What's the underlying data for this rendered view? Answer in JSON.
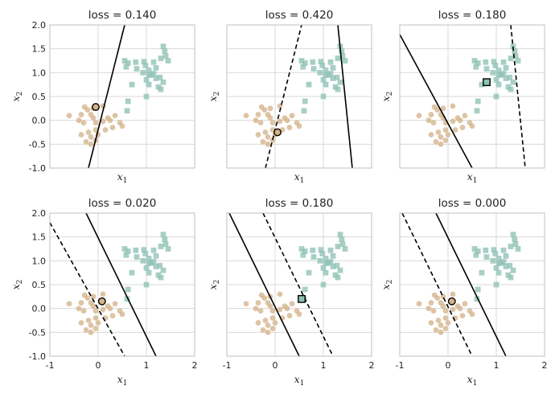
{
  "figure": {
    "xlim": [
      -1,
      2
    ],
    "ylim": [
      -1,
      2
    ],
    "xticks": [
      -1,
      0,
      1,
      2
    ],
    "yticks": [
      -1.0,
      -0.5,
      0.0,
      0.5,
      1.0,
      1.5,
      2.0
    ],
    "xlabel": "x1",
    "ylabel": "x2",
    "xlabel_parts": {
      "base": "x",
      "sub": "1"
    },
    "ylabel_parts": {
      "base": "x",
      "sub": "2"
    },
    "grid": true,
    "colors": {
      "class_square": "#8fc1b5",
      "class_circle": "#d4b48a",
      "line": "#000000",
      "highlight_edge": "#000000",
      "grid": "#d9d9d9",
      "spine": "#bfbfbf"
    },
    "points": {
      "squares": [
        [
          0.55,
          1.25
        ],
        [
          0.62,
          1.2
        ],
        [
          0.58,
          1.12
        ],
        [
          0.95,
          1.23
        ],
        [
          0.98,
          1.15
        ],
        [
          0.78,
          1.22
        ],
        [
          0.8,
          1.08
        ],
        [
          1.05,
          1.05
        ],
        [
          1.15,
          1.22
        ],
        [
          1.2,
          1.1
        ],
        [
          1.3,
          1.3
        ],
        [
          1.35,
          1.55
        ],
        [
          1.38,
          1.45
        ],
        [
          1.4,
          1.35
        ],
        [
          1.45,
          1.25
        ],
        [
          1.05,
          0.95
        ],
        [
          1.1,
          0.95
        ],
        [
          1.15,
          0.98
        ],
        [
          1.2,
          0.88
        ],
        [
          1.0,
          0.85
        ],
        [
          1.05,
          0.75
        ],
        [
          1.25,
          0.7
        ],
        [
          1.3,
          0.65
        ],
        [
          1.35,
          0.8
        ],
        [
          0.7,
          0.75
        ],
        [
          1.0,
          0.5
        ],
        [
          0.62,
          0.4
        ],
        [
          0.6,
          0.2
        ],
        [
          1.28,
          0.9
        ],
        [
          0.93,
          1.0
        ]
      ],
      "circles": [
        [
          -0.28,
          0.28
        ],
        [
          -0.22,
          0.22
        ],
        [
          -0.35,
          0.12
        ],
        [
          -0.6,
          0.1
        ],
        [
          -0.4,
          0.0
        ],
        [
          -0.3,
          -0.05
        ],
        [
          -0.15,
          0.12
        ],
        [
          -0.1,
          0.05
        ],
        [
          -0.05,
          -0.05
        ],
        [
          0.1,
          -0.02
        ],
        [
          0.2,
          0.05
        ],
        [
          0.25,
          0.0
        ],
        [
          0.35,
          0.1
        ],
        [
          0.45,
          -0.05
        ],
        [
          0.5,
          -0.12
        ],
        [
          0.3,
          -0.15
        ],
        [
          0.15,
          -0.2
        ],
        [
          -0.05,
          -0.2
        ],
        [
          -0.2,
          -0.25
        ],
        [
          -0.35,
          -0.3
        ],
        [
          -0.15,
          -0.35
        ],
        [
          -0.05,
          -0.42
        ],
        [
          -0.25,
          -0.45
        ],
        [
          -0.15,
          -0.5
        ],
        [
          0.0,
          -0.3
        ],
        [
          -0.1,
          0.25
        ],
        [
          0.1,
          0.3
        ]
      ]
    }
  },
  "chart_data": [
    {
      "type": "scatter",
      "title": "loss = 0.140",
      "lines": [
        {
          "style": "solid",
          "x": [
            -0.2,
            0.55
          ],
          "y": [
            -1.0,
            2.0
          ]
        }
      ],
      "highlight": {
        "shape": "circle",
        "x": -0.05,
        "y": 0.28
      }
    },
    {
      "type": "scatter",
      "title": "loss = 0.420",
      "lines": [
        {
          "style": "dashed",
          "x": [
            -0.2,
            0.55
          ],
          "y": [
            -1.0,
            2.0
          ]
        },
        {
          "style": "solid",
          "x": [
            1.3,
            1.6
          ],
          "y": [
            2.0,
            -1.0
          ]
        }
      ],
      "highlight": {
        "shape": "circle",
        "x": 0.05,
        "y": -0.25
      }
    },
    {
      "type": "scatter",
      "title": "loss = 0.180",
      "lines": [
        {
          "style": "solid",
          "x": [
            -1.0,
            0.5
          ],
          "y": [
            1.8,
            -1.0
          ]
        },
        {
          "style": "dashed",
          "x": [
            1.3,
            1.6
          ],
          "y": [
            2.0,
            -1.0
          ]
        }
      ],
      "highlight": {
        "shape": "square",
        "x": 0.8,
        "y": 0.8
      }
    },
    {
      "type": "scatter",
      "title": "loss = 0.020",
      "lines": [
        {
          "style": "dashed",
          "x": [
            -1.0,
            0.55
          ],
          "y": [
            1.8,
            -1.0
          ]
        },
        {
          "style": "solid",
          "x": [
            -0.25,
            1.2
          ],
          "y": [
            2.0,
            -1.0
          ]
        }
      ],
      "highlight": {
        "shape": "circle",
        "x": 0.08,
        "y": 0.15
      }
    },
    {
      "type": "scatter",
      "title": "loss = 0.180",
      "lines": [
        {
          "style": "solid",
          "x": [
            -0.95,
            0.5
          ],
          "y": [
            2.0,
            -1.0
          ]
        },
        {
          "style": "dashed",
          "x": [
            -0.25,
            1.2
          ],
          "y": [
            2.0,
            -1.0
          ]
        }
      ],
      "highlight": {
        "shape": "square",
        "x": 0.55,
        "y": 0.2
      }
    },
    {
      "type": "scatter",
      "title": "loss = 0.000",
      "lines": [
        {
          "style": "dashed",
          "x": [
            -0.95,
            0.5
          ],
          "y": [
            2.0,
            -1.0
          ]
        },
        {
          "style": "solid",
          "x": [
            -0.25,
            1.2
          ],
          "y": [
            2.0,
            -1.0
          ]
        }
      ],
      "highlight": {
        "shape": "circle",
        "x": 0.08,
        "y": 0.15
      }
    }
  ]
}
